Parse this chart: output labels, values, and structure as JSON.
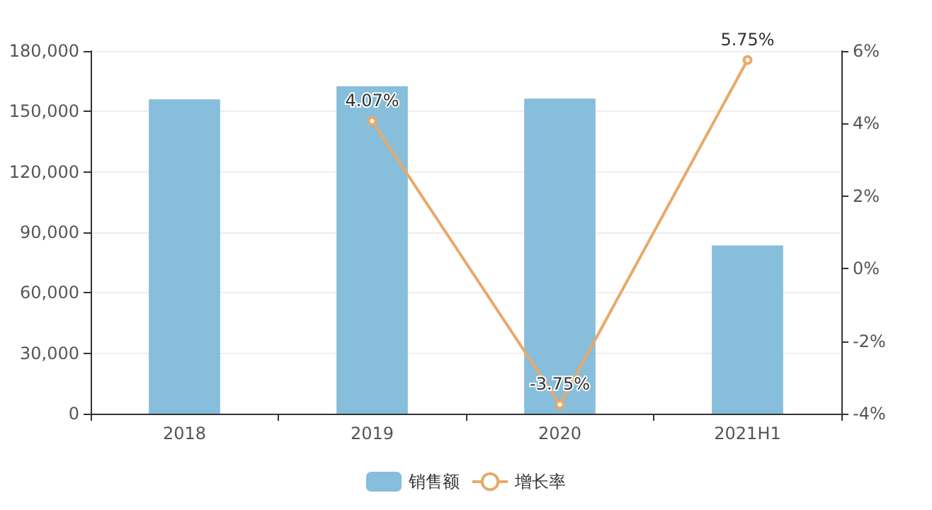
{
  "chart_data": {
    "type": "bar",
    "categories": [
      "2018",
      "2019",
      "2020",
      "2021H1"
    ],
    "series": [
      {
        "name": "销售额",
        "color": "#86bedb",
        "values": [
          156000,
          162500,
          156400,
          83500
        ]
      },
      {
        "name": "增长率",
        "type": "line",
        "axis": "y2",
        "color": "#e8a96a",
        "marker": "circle",
        "values": [
          null,
          4.07,
          -3.75,
          5.75
        ],
        "value_labels": [
          null,
          "4.07%",
          "-3.75%",
          "5.75%"
        ]
      }
    ],
    "ylim": [
      0,
      180000
    ],
    "yticks": [
      {
        "value": 0,
        "label": "0"
      },
      {
        "value": 30000,
        "label": "30,000"
      },
      {
        "value": 60000,
        "label": "60,000"
      },
      {
        "value": 90000,
        "label": "90,000"
      },
      {
        "value": 120000,
        "label": "120,000"
      },
      {
        "value": 150000,
        "label": "150,000"
      },
      {
        "value": 180000,
        "label": "180,000"
      }
    ],
    "y2lim": [
      -4,
      6
    ],
    "y2ticks": [
      {
        "value": -4,
        "label": "-4%"
      },
      {
        "value": -2,
        "label": "-2%"
      },
      {
        "value": 0,
        "label": "0%"
      },
      {
        "value": 2,
        "label": "2%"
      },
      {
        "value": 4,
        "label": "4%"
      },
      {
        "value": 6,
        "label": "6%"
      }
    ],
    "grid": "y",
    "legend": "bottom"
  }
}
